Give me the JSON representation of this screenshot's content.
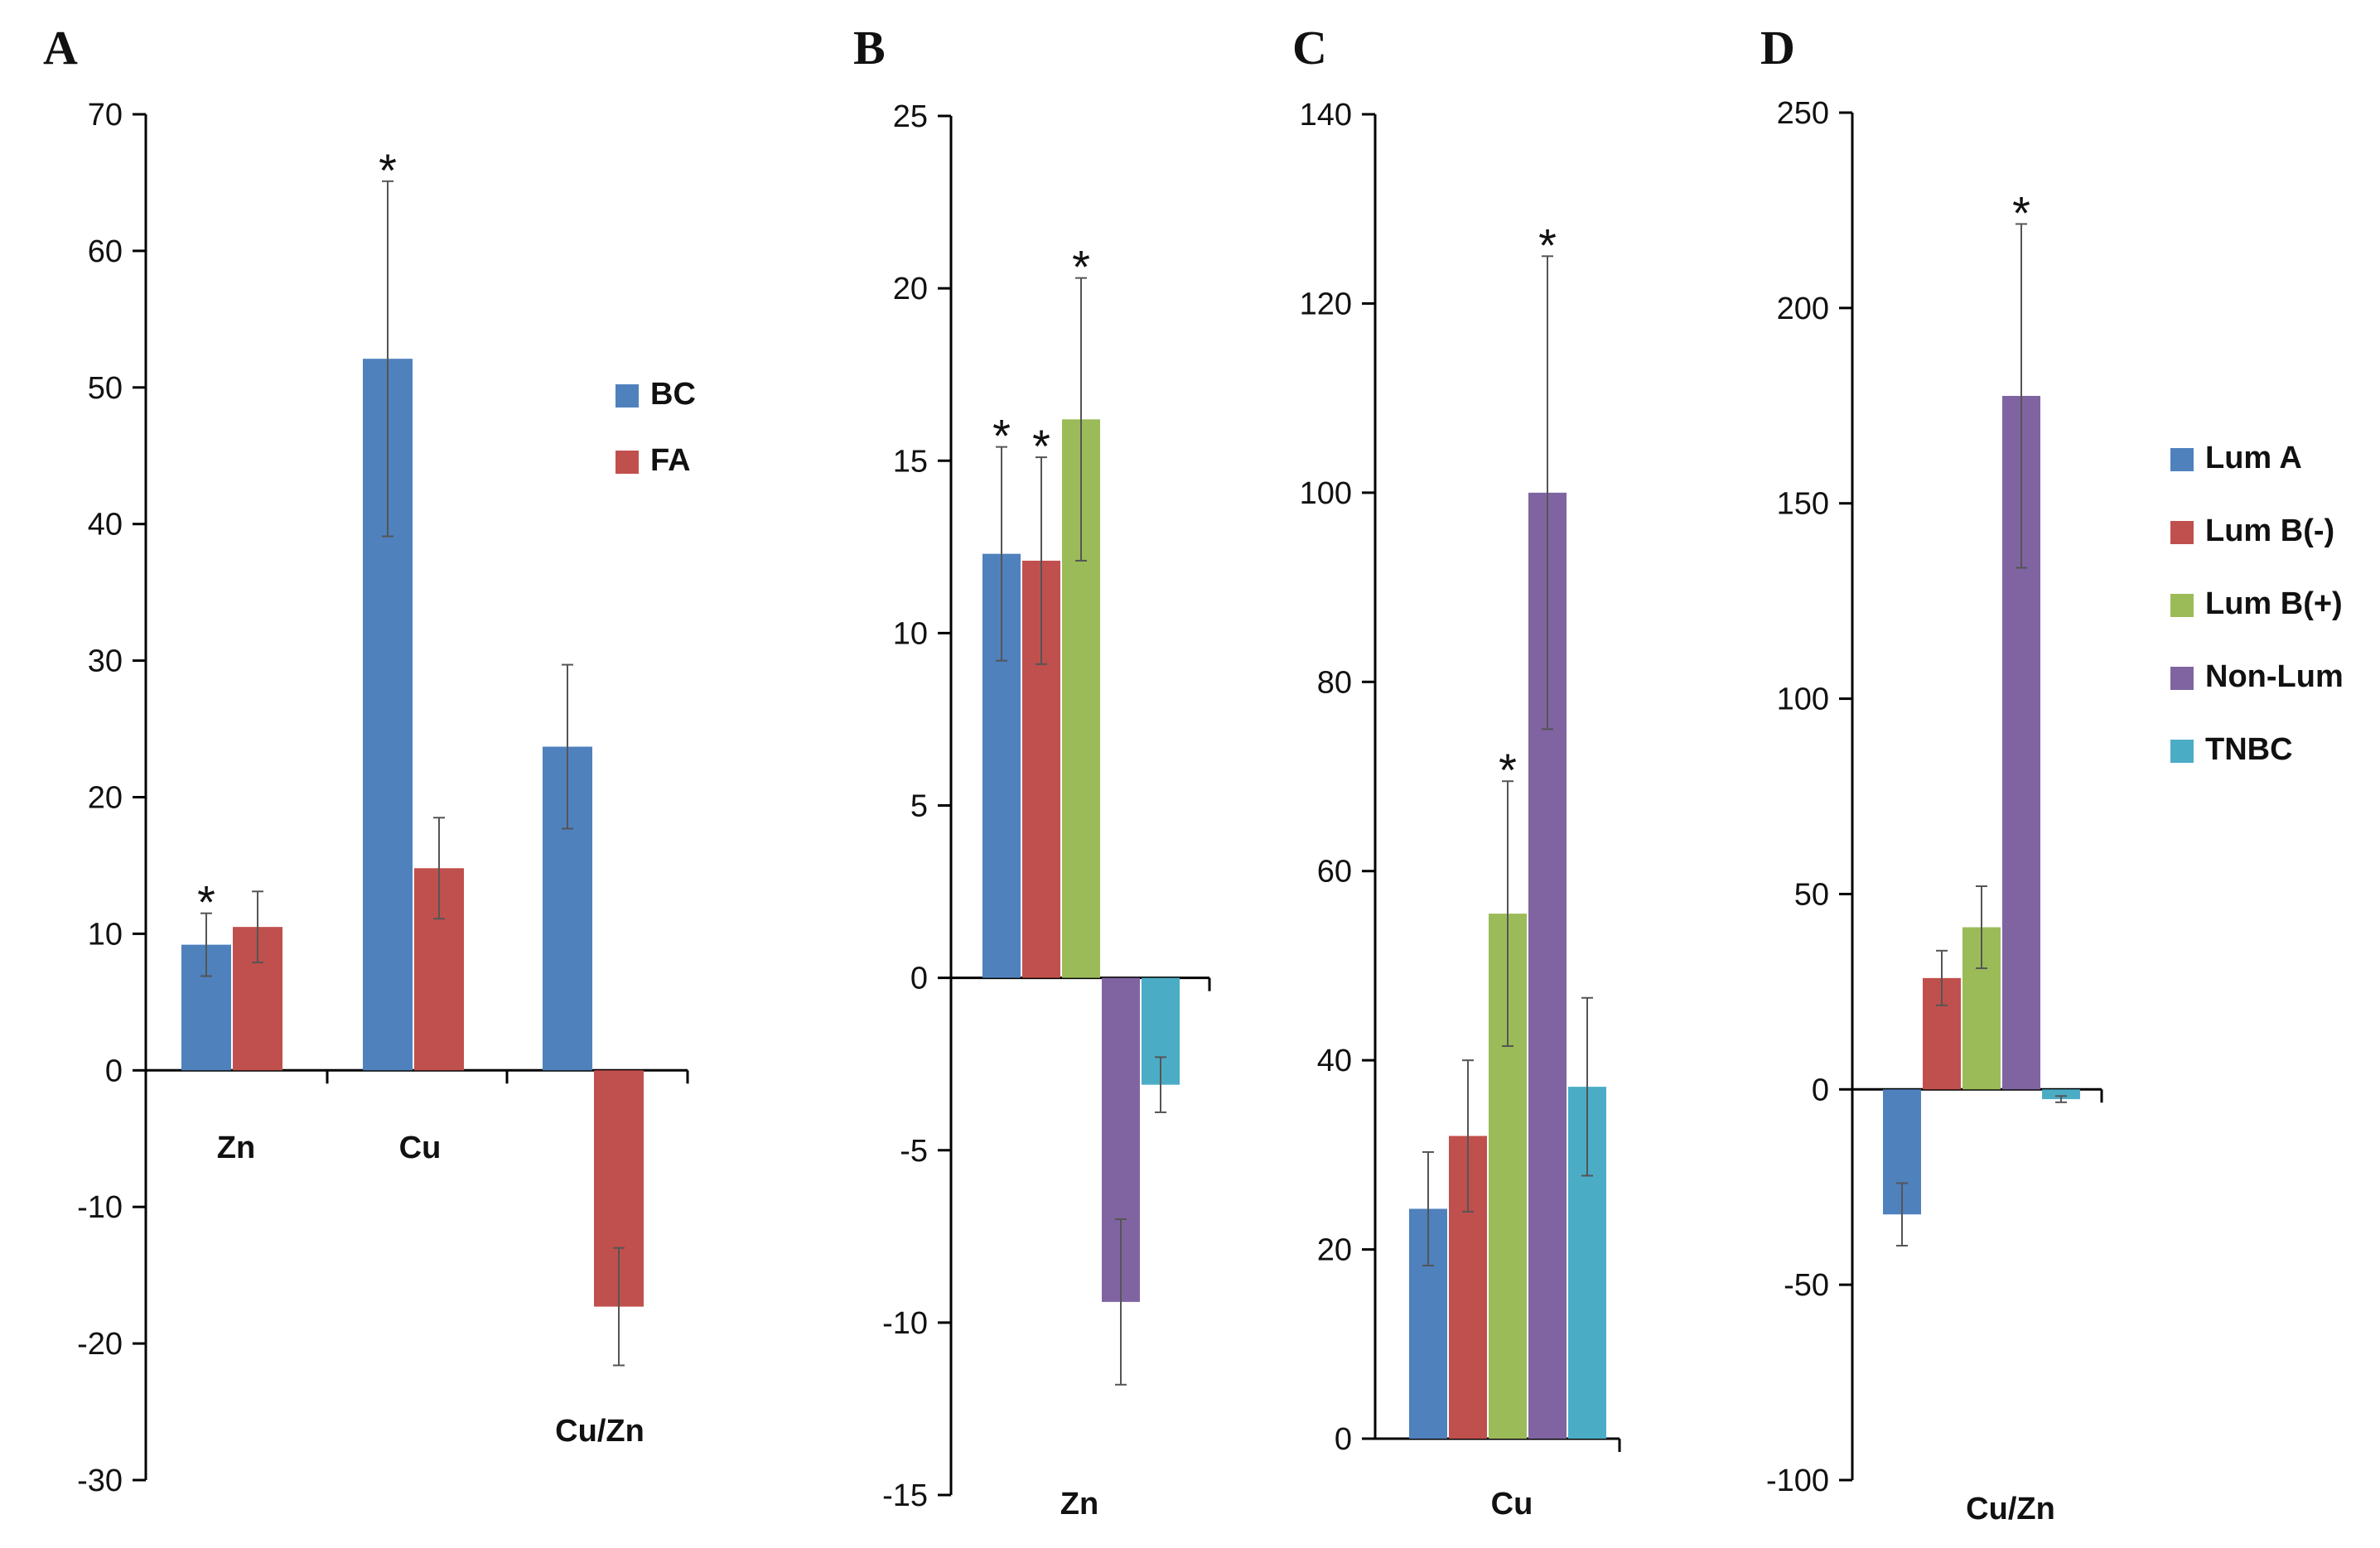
{
  "figure": {
    "letters": [
      "A",
      "B",
      "C",
      "D"
    ]
  },
  "chart_data": [
    {
      "panel": "A",
      "type": "bar",
      "categories": [
        "Zn",
        "Cu",
        "Cu/Zn"
      ],
      "series": [
        {
          "name": "BC",
          "color": "#4f81bd",
          "values": [
            9.2,
            52.1,
            23.7
          ],
          "errors": [
            2.3,
            13,
            6
          ],
          "significant": [
            true,
            true,
            false
          ]
        },
        {
          "name": "FA",
          "color": "#c0504d",
          "values": [
            10.5,
            14.8,
            -17.3
          ],
          "errors": [
            2.6,
            3.7,
            4.3
          ],
          "significant": [
            false,
            false,
            false
          ]
        }
      ],
      "ylim": [
        -30,
        70
      ],
      "yticks": [
        -30,
        -20,
        -10,
        0,
        10,
        20,
        30,
        40,
        50,
        60,
        70
      ],
      "star_label": "*",
      "legend": "right"
    },
    {
      "panel": "B",
      "type": "bar",
      "categories": [
        "Zn"
      ],
      "series": [
        {
          "name": "Lum A",
          "color": "#4f81bd",
          "values": [
            12.3
          ],
          "errors": [
            3.1
          ],
          "significant": [
            true
          ]
        },
        {
          "name": "Lum B(-)",
          "color": "#c0504d",
          "values": [
            12.1
          ],
          "errors": [
            3
          ],
          "significant": [
            true
          ]
        },
        {
          "name": "Lum B(+)",
          "color": "#9bbb59",
          "values": [
            16.2
          ],
          "errors": [
            4.1
          ],
          "significant": [
            true
          ]
        },
        {
          "name": "Non-Lum",
          "color": "#8064a2",
          "values": [
            -9.4
          ],
          "errors": [
            2.4
          ],
          "significant": [
            false
          ]
        },
        {
          "name": "TNBC",
          "color": "#4bacc6",
          "values": [
            -3.1
          ],
          "errors": [
            0.8
          ],
          "significant": [
            false
          ]
        }
      ],
      "ylim": [
        -15,
        25
      ],
      "yticks": [
        -15,
        -10,
        -5,
        0,
        5,
        10,
        15,
        20,
        25
      ],
      "star_label": "*"
    },
    {
      "panel": "C",
      "type": "bar",
      "categories": [
        "Cu"
      ],
      "series": [
        {
          "name": "Lum A",
          "color": "#4f81bd",
          "values": [
            24.3
          ],
          "errors": [
            6
          ],
          "significant": [
            false
          ]
        },
        {
          "name": "Lum B(-)",
          "color": "#c0504d",
          "values": [
            32
          ],
          "errors": [
            8
          ],
          "significant": [
            false
          ]
        },
        {
          "name": "Lum B(+)",
          "color": "#9bbb59",
          "values": [
            55.5
          ],
          "errors": [
            14
          ],
          "significant": [
            true
          ]
        },
        {
          "name": "Non-Lum",
          "color": "#8064a2",
          "values": [
            100
          ],
          "errors": [
            25
          ],
          "significant": [
            true
          ]
        },
        {
          "name": "TNBC",
          "color": "#4bacc6",
          "values": [
            37.2
          ],
          "errors": [
            9.4
          ],
          "significant": [
            false
          ]
        }
      ],
      "ylim": [
        0,
        140
      ],
      "yticks": [
        0,
        20,
        40,
        60,
        80,
        100,
        120,
        140
      ],
      "star_label": "*"
    },
    {
      "panel": "D",
      "type": "bar",
      "categories": [
        "Cu/Zn"
      ],
      "series": [
        {
          "name": "Lum A",
          "color": "#4f81bd",
          "values": [
            -32
          ],
          "errors": [
            8
          ],
          "significant": [
            false
          ]
        },
        {
          "name": "Lum B(-)",
          "color": "#c0504d",
          "values": [
            28.5
          ],
          "errors": [
            7
          ],
          "significant": [
            false
          ]
        },
        {
          "name": "Lum B(+)",
          "color": "#9bbb59",
          "values": [
            41.5
          ],
          "errors": [
            10.5
          ],
          "significant": [
            false
          ]
        },
        {
          "name": "Non-Lum",
          "color": "#8064a2",
          "values": [
            177.5
          ],
          "errors": [
            44
          ],
          "significant": [
            true
          ]
        },
        {
          "name": "TNBC",
          "color": "#4bacc6",
          "values": [
            -2.5
          ],
          "errors": [
            0.8
          ],
          "significant": [
            false
          ]
        }
      ],
      "ylim": [
        -100,
        250
      ],
      "yticks": [
        -100,
        -50,
        0,
        50,
        100,
        150,
        200,
        250
      ],
      "star_label": "*",
      "legend": "right"
    }
  ]
}
